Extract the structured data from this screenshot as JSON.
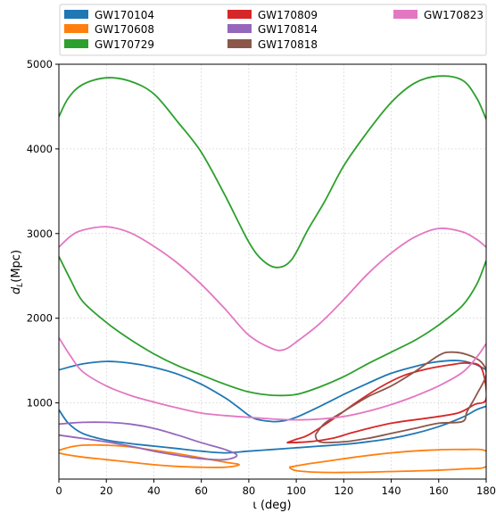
{
  "chart_data": {
    "type": "line",
    "xlabel": "ι (deg)",
    "ylabel": "d_L (Mpc)",
    "ylabel_main": "d",
    "ylabel_sub": "L",
    "ylabel_unit": "(Mpc)",
    "xlim": [
      0,
      180
    ],
    "ylim": [
      100,
      5000
    ],
    "x_ticks": [
      0,
      20,
      40,
      60,
      80,
      100,
      120,
      140,
      160,
      180
    ],
    "y_ticks": [
      1000,
      2000,
      3000,
      4000,
      5000
    ],
    "grid": true,
    "legend_placement": "top",
    "series": [
      {
        "name": "GW170104",
        "color": "#1f77b4",
        "contours": [
          [
            [
              0,
              1390
            ],
            [
              10,
              1460
            ],
            [
              20,
              1490
            ],
            [
              30,
              1470
            ],
            [
              40,
              1420
            ],
            [
              50,
              1340
            ],
            [
              60,
              1220
            ],
            [
              70,
              1060
            ],
            [
              75,
              960
            ],
            [
              82,
              820
            ],
            [
              90,
              780
            ],
            [
              95,
              790
            ],
            [
              100,
              830
            ],
            [
              110,
              960
            ],
            [
              120,
              1100
            ],
            [
              130,
              1230
            ],
            [
              140,
              1350
            ],
            [
              150,
              1430
            ],
            [
              158,
              1480
            ],
            [
              168,
              1500
            ],
            [
              175,
              1460
            ],
            [
              180,
              1390
            ]
          ],
          [
            [
              0,
              920
            ],
            [
              4,
              760
            ],
            [
              10,
              640
            ],
            [
              20,
              560
            ],
            [
              30,
              520
            ],
            [
              40,
              490
            ],
            [
              50,
              460
            ],
            [
              60,
              430
            ],
            [
              70,
              410
            ],
            [
              80,
              430
            ],
            [
              90,
              450
            ],
            [
              100,
              470
            ],
            [
              110,
              490
            ],
            [
              120,
              510
            ],
            [
              130,
              540
            ],
            [
              140,
              580
            ],
            [
              150,
              640
            ],
            [
              160,
              720
            ],
            [
              170,
              830
            ],
            [
              176,
              920
            ],
            [
              180,
              960
            ]
          ]
        ]
      },
      {
        "name": "GW170608",
        "color": "#ff7f0e",
        "contours": [
          [
            [
              0,
              440
            ],
            [
              5,
              480
            ],
            [
              10,
              500
            ],
            [
              20,
              500
            ],
            [
              30,
              480
            ],
            [
              40,
              440
            ],
            [
              50,
              400
            ],
            [
              60,
              350
            ],
            [
              70,
              300
            ],
            [
              76,
              270
            ],
            [
              70,
              240
            ],
            [
              60,
              240
            ],
            [
              50,
              250
            ],
            [
              40,
              270
            ],
            [
              30,
              300
            ],
            [
              20,
              330
            ],
            [
              10,
              360
            ],
            [
              3,
              390
            ],
            [
              0,
              410
            ]
          ],
          [
            [
              97,
              240
            ],
            [
              105,
              280
            ],
            [
              115,
              320
            ],
            [
              125,
              360
            ],
            [
              140,
              410
            ],
            [
              155,
              440
            ],
            [
              170,
              450
            ],
            [
              180,
              430
            ],
            [
              180,
              250
            ],
            [
              170,
              220
            ],
            [
              155,
              200
            ],
            [
              140,
              190
            ],
            [
              125,
              180
            ],
            [
              110,
              180
            ],
            [
              100,
              200
            ],
            [
              97,
              240
            ]
          ]
        ]
      },
      {
        "name": "GW170729",
        "color": "#2ca02c",
        "contours": [
          [
            [
              0,
              4380
            ],
            [
              4,
              4600
            ],
            [
              10,
              4760
            ],
            [
              20,
              4840
            ],
            [
              30,
              4800
            ],
            [
              40,
              4650
            ],
            [
              50,
              4320
            ],
            [
              60,
              3960
            ],
            [
              70,
              3450
            ],
            [
              80,
              2900
            ],
            [
              86,
              2680
            ],
            [
              92,
              2600
            ],
            [
              98,
              2690
            ],
            [
              105,
              3050
            ],
            [
              112,
              3380
            ],
            [
              120,
              3800
            ],
            [
              130,
              4200
            ],
            [
              140,
              4550
            ],
            [
              150,
              4780
            ],
            [
              160,
              4860
            ],
            [
              170,
              4810
            ],
            [
              176,
              4600
            ],
            [
              180,
              4350
            ]
          ],
          [
            [
              0,
              2730
            ],
            [
              5,
              2450
            ],
            [
              10,
              2200
            ],
            [
              20,
              1950
            ],
            [
              30,
              1750
            ],
            [
              40,
              1580
            ],
            [
              50,
              1440
            ],
            [
              60,
              1330
            ],
            [
              70,
              1220
            ],
            [
              80,
              1130
            ],
            [
              90,
              1090
            ],
            [
              100,
              1100
            ],
            [
              110,
              1190
            ],
            [
              120,
              1310
            ],
            [
              130,
              1460
            ],
            [
              140,
              1600
            ],
            [
              150,
              1740
            ],
            [
              160,
              1920
            ],
            [
              170,
              2150
            ],
            [
              176,
              2400
            ],
            [
              180,
              2680
            ]
          ]
        ]
      },
      {
        "name": "GW170809",
        "color": "#d62728",
        "contours": [
          [
            [
              96,
              530
            ],
            [
              100,
              570
            ],
            [
              105,
              620
            ],
            [
              115,
              800
            ],
            [
              125,
              1000
            ],
            [
              135,
              1180
            ],
            [
              145,
              1320
            ],
            [
              155,
              1400
            ],
            [
              165,
              1450
            ],
            [
              172,
              1470
            ],
            [
              178,
              1410
            ],
            [
              180,
              1050
            ],
            [
              175,
              980
            ],
            [
              168,
              880
            ],
            [
              155,
              820
            ],
            [
              140,
              760
            ],
            [
              125,
              660
            ],
            [
              115,
              580
            ],
            [
              105,
              540
            ],
            [
              96,
              530
            ]
          ]
        ]
      },
      {
        "name": "GW170814",
        "color": "#9467bd",
        "contours": [
          [
            [
              0,
              750
            ],
            [
              10,
              770
            ],
            [
              20,
              770
            ],
            [
              30,
              750
            ],
            [
              40,
              700
            ],
            [
              50,
              620
            ],
            [
              60,
              530
            ],
            [
              70,
              450
            ],
            [
              75,
              380
            ],
            [
              70,
              330
            ],
            [
              60,
              340
            ],
            [
              50,
              380
            ],
            [
              40,
              430
            ],
            [
              30,
              490
            ],
            [
              20,
              540
            ],
            [
              10,
              580
            ],
            [
              0,
              620
            ]
          ]
        ]
      },
      {
        "name": "GW170818",
        "color": "#8c564b",
        "contours": [
          [
            [
              108,
              620
            ],
            [
              112,
              760
            ],
            [
              120,
              900
            ],
            [
              130,
              1070
            ],
            [
              140,
              1200
            ],
            [
              150,
              1370
            ],
            [
              160,
              1560
            ],
            [
              165,
              1600
            ],
            [
              172,
              1570
            ],
            [
              178,
              1480
            ],
            [
              180,
              1330
            ],
            [
              176,
              1100
            ],
            [
              172,
              900
            ],
            [
              170,
              780
            ],
            [
              160,
              760
            ],
            [
              150,
              700
            ],
            [
              140,
              640
            ],
            [
              130,
              580
            ],
            [
              120,
              540
            ],
            [
              110,
              540
            ],
            [
              108,
              620
            ]
          ]
        ]
      },
      {
        "name": "GW170823",
        "color": "#e377c2",
        "contours": [
          [
            [
              0,
              2840
            ],
            [
              5,
              2970
            ],
            [
              10,
              3040
            ],
            [
              20,
              3080
            ],
            [
              30,
              3010
            ],
            [
              40,
              2850
            ],
            [
              50,
              2650
            ],
            [
              60,
              2400
            ],
            [
              70,
              2110
            ],
            [
              80,
              1800
            ],
            [
              90,
              1640
            ],
            [
              95,
              1630
            ],
            [
              100,
              1720
            ],
            [
              110,
              1940
            ],
            [
              120,
              2220
            ],
            [
              130,
              2520
            ],
            [
              140,
              2770
            ],
            [
              150,
              2960
            ],
            [
              160,
              3060
            ],
            [
              170,
              3020
            ],
            [
              176,
              2930
            ],
            [
              180,
              2840
            ]
          ],
          [
            [
              0,
              1770
            ],
            [
              5,
              1550
            ],
            [
              10,
              1370
            ],
            [
              20,
              1200
            ],
            [
              30,
              1090
            ],
            [
              40,
              1010
            ],
            [
              50,
              940
            ],
            [
              60,
              880
            ],
            [
              70,
              850
            ],
            [
              80,
              830
            ],
            [
              90,
              810
            ],
            [
              100,
              800
            ],
            [
              110,
              810
            ],
            [
              120,
              840
            ],
            [
              130,
              900
            ],
            [
              140,
              980
            ],
            [
              150,
              1080
            ],
            [
              160,
              1200
            ],
            [
              170,
              1360
            ],
            [
              176,
              1540
            ],
            [
              180,
              1700
            ]
          ]
        ]
      }
    ]
  }
}
